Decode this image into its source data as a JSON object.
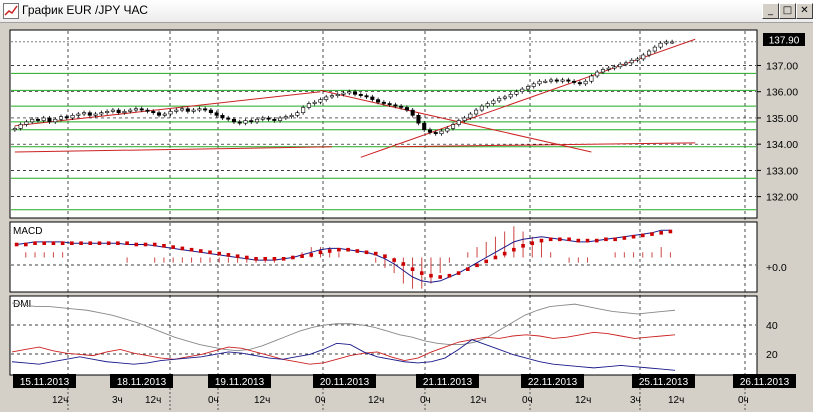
{
  "window": {
    "title": "График EUR /JPY  ЧАС",
    "btn_min": "_",
    "btn_max": "□",
    "btn_close": "✕"
  },
  "panels": {
    "macd_label": "MACD",
    "dmi_label": "DMI"
  },
  "price_axis": {
    "ticks": [
      "137.00",
      "136.00",
      "135.00",
      "134.00",
      "133.00",
      "132.00"
    ],
    "current": "137.90"
  },
  "macd_axis": {
    "zero_label": "+0.0"
  },
  "dmi_axis": {
    "ticks": [
      "40",
      "20"
    ]
  },
  "x_axis": {
    "dates": [
      "15.11.2013",
      "18.11.2013",
      "19.11.2013",
      "20.11.2013",
      "21.11.2013",
      "22.11.2013",
      "25.11.2013",
      "26.11.2013"
    ],
    "hours": [
      "12ч",
      "3ч",
      "12ч",
      "0ч",
      "12ч",
      "0ч",
      "12ч",
      "0ч",
      "12ч",
      "0ч",
      "12ч",
      "3ч",
      "12ч",
      "0ч"
    ]
  },
  "colors": {
    "bull": "#ffffff",
    "bear": "#000000",
    "trend": "#cc2222",
    "support": "#22aa22",
    "macd_line": "#1a1a8c",
    "macd_signal": "#cc0000",
    "dmi_adx": "#888888",
    "dmi_plus": "#cc2222",
    "dmi_minus": "#1a1a8c"
  },
  "chart_data": {
    "type": "candlestick",
    "symbol": "EUR/JPY",
    "timeframe": "1H",
    "ylim": [
      131.3,
      138.2
    ],
    "last_price": 137.9,
    "close": [
      134.6,
      134.75,
      134.85,
      134.95,
      134.9,
      135.0,
      134.85,
      134.95,
      135.05,
      135.0,
      135.1,
      135.15,
      135.2,
      135.1,
      135.15,
      135.2,
      135.25,
      135.3,
      135.2,
      135.25,
      135.3,
      135.35,
      135.3,
      135.25,
      135.2,
      135.1,
      135.15,
      135.25,
      135.3,
      135.35,
      135.25,
      135.3,
      135.35,
      135.3,
      135.2,
      135.1,
      135.0,
      134.95,
      134.85,
      134.8,
      134.9,
      134.85,
      134.95,
      135.0,
      134.95,
      134.9,
      135.0,
      135.05,
      135.1,
      135.2,
      135.4,
      135.55,
      135.6,
      135.7,
      135.8,
      135.85,
      135.9,
      135.95,
      136.0,
      135.9,
      135.85,
      135.8,
      135.7,
      135.6,
      135.55,
      135.5,
      135.45,
      135.4,
      135.3,
      135.1,
      134.8,
      134.55,
      134.45,
      134.4,
      134.5,
      134.6,
      134.75,
      134.9,
      135.0,
      135.15,
      135.3,
      135.45,
      135.55,
      135.65,
      135.75,
      135.8,
      135.9,
      136.0,
      136.1,
      136.2,
      136.3,
      136.4,
      136.4,
      136.45,
      136.4,
      136.45,
      136.4,
      136.35,
      136.3,
      136.4,
      136.6,
      136.75,
      136.85,
      136.9,
      136.95,
      137.05,
      137.1,
      137.2,
      137.25,
      137.4,
      137.55,
      137.7,
      137.85,
      137.9,
      137.9
    ],
    "support_levels": [
      136.7,
      136.05,
      135.45,
      134.85,
      134.55,
      133.9,
      132.7,
      131.5
    ],
    "trendlines": [
      {
        "from": [
          0,
          134.7
        ],
        "to": [
          53,
          136.0
        ]
      },
      {
        "from": [
          53,
          136.05
        ],
        "to": [
          100,
          133.7
        ]
      },
      {
        "from": [
          60,
          133.5
        ],
        "to": [
          118,
          138.0
        ]
      },
      {
        "from": [
          0,
          133.7
        ],
        "to": [
          55,
          133.9
        ]
      },
      {
        "from": [
          66,
          133.9
        ],
        "to": [
          118,
          134.05
        ]
      }
    ],
    "macd": {
      "line": [
        0.1,
        0.11,
        0.12,
        0.12,
        0.12,
        0.12,
        0.11,
        0.11,
        0.11,
        0.11,
        0.11,
        0.11,
        0.1,
        0.1,
        0.1,
        0.09,
        0.08,
        0.07,
        0.06,
        0.05,
        0.04,
        0.03,
        0.02,
        0.01,
        0.0,
        -0.01,
        -0.02,
        -0.02,
        -0.02,
        -0.01,
        0.0,
        0.02,
        0.04,
        0.06,
        0.07,
        0.07,
        0.06,
        0.05,
        0.04,
        0.02,
        -0.01,
        -0.05,
        -0.1,
        -0.15,
        -0.18,
        -0.19,
        -0.18,
        -0.15,
        -0.12,
        -0.08,
        -0.04,
        0.0,
        0.04,
        0.08,
        0.12,
        0.14,
        0.15,
        0.16,
        0.15,
        0.14,
        0.13,
        0.12,
        0.12,
        0.13,
        0.14,
        0.15,
        0.16,
        0.17,
        0.18,
        0.19,
        0.21,
        0.21
      ],
      "signal": [
        0.1,
        0.1,
        0.11,
        0.11,
        0.11,
        0.11,
        0.11,
        0.11,
        0.11,
        0.11,
        0.11,
        0.11,
        0.11,
        0.1,
        0.1,
        0.1,
        0.09,
        0.08,
        0.07,
        0.06,
        0.05,
        0.04,
        0.03,
        0.02,
        0.01,
        0.0,
        -0.01,
        -0.01,
        -0.01,
        -0.01,
        0.0,
        0.01,
        0.02,
        0.04,
        0.05,
        0.06,
        0.06,
        0.05,
        0.04,
        0.03,
        0.01,
        -0.02,
        -0.05,
        -0.09,
        -0.12,
        -0.14,
        -0.15,
        -0.14,
        -0.12,
        -0.09,
        -0.06,
        -0.03,
        0.0,
        0.03,
        0.06,
        0.09,
        0.11,
        0.13,
        0.14,
        0.14,
        0.14,
        0.13,
        0.13,
        0.13,
        0.14,
        0.14,
        0.15,
        0.16,
        0.17,
        0.18,
        0.19,
        0.2
      ],
      "zero": 0.0
    },
    "dmi": {
      "adx": [
        58,
        56,
        55,
        55,
        54,
        53,
        52,
        50,
        48,
        45,
        42,
        38,
        34,
        30,
        27,
        24,
        22,
        20,
        19,
        20,
        23,
        27,
        31,
        35,
        38,
        40,
        41,
        41,
        40,
        38,
        35,
        32,
        30,
        27,
        25,
        24,
        24,
        26,
        30,
        36,
        42,
        48,
        52,
        55,
        56,
        57,
        55,
        53,
        51,
        50,
        49,
        50,
        51,
        52
      ],
      "plus": [
        18,
        20,
        22,
        19,
        17,
        16,
        15,
        18,
        20,
        17,
        15,
        13,
        12,
        14,
        16,
        19,
        22,
        21,
        18,
        15,
        12,
        10,
        8,
        9,
        12,
        15,
        17,
        18,
        14,
        11,
        13,
        18,
        22,
        26,
        28,
        30,
        29,
        31,
        32,
        31,
        29,
        30,
        32,
        34,
        33,
        31,
        29,
        30,
        31,
        32
      ],
      "minus": [
        10,
        9,
        8,
        10,
        12,
        14,
        12,
        10,
        9,
        8,
        9,
        11,
        12,
        13,
        14,
        16,
        18,
        17,
        15,
        13,
        12,
        14,
        16,
        20,
        25,
        24,
        18,
        14,
        12,
        10,
        9,
        10,
        13,
        20,
        28,
        24,
        20,
        16,
        13,
        10,
        8,
        7,
        6,
        5,
        6,
        7,
        6,
        5,
        4,
        3
      ]
    }
  }
}
